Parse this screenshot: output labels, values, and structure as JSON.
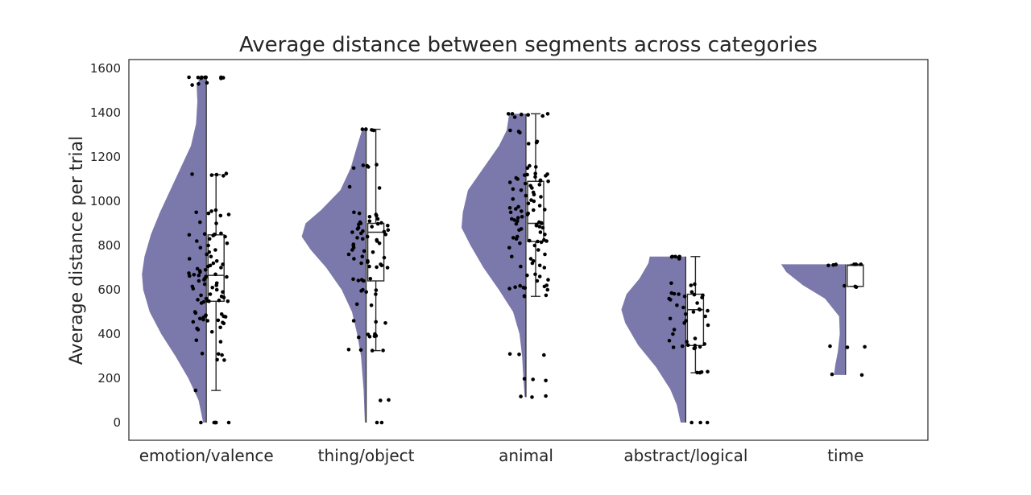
{
  "chart_data": {
    "type": "raincloud",
    "title": "Average distance between segments across categories",
    "xlabel": "",
    "ylabel": "Average distance per trial",
    "ylim": [
      -80,
      1640
    ],
    "yticks": [
      0,
      200,
      400,
      600,
      800,
      1000,
      1200,
      1400,
      1600
    ],
    "grid": false,
    "colors": {
      "violin": "#7b78ac",
      "points": "#000000",
      "box": "#2a2a2a",
      "axes": "#262626"
    },
    "categories": [
      "emotion/valence",
      "thing/object",
      "animal",
      "abstract/logical",
      "time"
    ],
    "groups": [
      {
        "name": "emotion/valence",
        "range": [
          0,
          1560
        ],
        "box": {
          "min": 145,
          "q1": 548,
          "median": 665,
          "q3": 848,
          "max": 1120
        },
        "density": [
          [
            0,
            0.05
          ],
          [
            100,
            0.12
          ],
          [
            200,
            0.28
          ],
          [
            300,
            0.48
          ],
          [
            400,
            0.7
          ],
          [
            500,
            0.88
          ],
          [
            600,
            0.98
          ],
          [
            670,
            1.0
          ],
          [
            750,
            0.96
          ],
          [
            850,
            0.86
          ],
          [
            950,
            0.72
          ],
          [
            1050,
            0.56
          ],
          [
            1150,
            0.4
          ],
          [
            1250,
            0.24
          ],
          [
            1350,
            0.16
          ],
          [
            1450,
            0.14
          ],
          [
            1520,
            0.15
          ],
          [
            1560,
            0.1
          ]
        ],
        "values": [
          0,
          0,
          0,
          0,
          0,
          0,
          145,
          282,
          284,
          305,
          310,
          312,
          365,
          372,
          410,
          420,
          425,
          430,
          448,
          452,
          455,
          460,
          462,
          465,
          470,
          475,
          478,
          480,
          482,
          485,
          490,
          495,
          500,
          540,
          545,
          548,
          548,
          550,
          552,
          555,
          560,
          565,
          570,
          575,
          580,
          590,
          600,
          605,
          610,
          615,
          620,
          625,
          630,
          640,
          645,
          650,
          655,
          658,
          660,
          662,
          665,
          668,
          670,
          675,
          680,
          685,
          690,
          695,
          700,
          705,
          710,
          715,
          720,
          730,
          740,
          750,
          760,
          770,
          780,
          790,
          800,
          810,
          820,
          830,
          840,
          845,
          848,
          850,
          850,
          852,
          855,
          900,
          905,
          935,
          940,
          945,
          950,
          955,
          960,
          1115,
          1118,
          1120,
          1122,
          1125,
          1525,
          1530,
          1535,
          1555,
          1556,
          1558,
          1559,
          1560,
          1560,
          1560,
          1560,
          1560
        ]
      },
      {
        "name": "thing/object",
        "range": [
          0,
          1325
        ],
        "box": {
          "min": 325,
          "q1": 640,
          "median": 860,
          "q3": 900,
          "max": 1325
        },
        "density": [
          [
            0,
            0.02
          ],
          [
            150,
            0.04
          ],
          [
            300,
            0.08
          ],
          [
            400,
            0.14
          ],
          [
            500,
            0.22
          ],
          [
            600,
            0.38
          ],
          [
            700,
            0.62
          ],
          [
            780,
            0.86
          ],
          [
            840,
            1.0
          ],
          [
            900,
            0.94
          ],
          [
            960,
            0.7
          ],
          [
            1050,
            0.4
          ],
          [
            1150,
            0.24
          ],
          [
            1250,
            0.14
          ],
          [
            1325,
            0.06
          ]
        ],
        "values": [
          0,
          0,
          100,
          102,
          325,
          326,
          328,
          330,
          385,
          388,
          390,
          392,
          395,
          398,
          400,
          450,
          455,
          460,
          530,
          535,
          580,
          590,
          595,
          598,
          600,
          640,
          642,
          645,
          648,
          650,
          700,
          702,
          705,
          710,
          715,
          720,
          725,
          730,
          740,
          745,
          750,
          760,
          770,
          775,
          780,
          790,
          800,
          805,
          810,
          820,
          825,
          830,
          835,
          840,
          850,
          855,
          860,
          862,
          865,
          870,
          875,
          880,
          885,
          890,
          895,
          898,
          900,
          902,
          905,
          910,
          920,
          930,
          935,
          940,
          945,
          950,
          1060,
          1065,
          1150,
          1155,
          1160,
          1162,
          1165,
          1320,
          1322,
          1325,
          1325,
          1325
        ]
      },
      {
        "name": "animal",
        "range": [
          115,
          1395
        ],
        "box": {
          "min": 570,
          "q1": 818,
          "median": 900,
          "q3": 1090,
          "max": 1395
        },
        "density": [
          [
            115,
            0.02
          ],
          [
            200,
            0.04
          ],
          [
            300,
            0.06
          ],
          [
            400,
            0.1
          ],
          [
            500,
            0.2
          ],
          [
            600,
            0.42
          ],
          [
            700,
            0.66
          ],
          [
            800,
            0.86
          ],
          [
            880,
            1.0
          ],
          [
            950,
            0.98
          ],
          [
            1050,
            0.9
          ],
          [
            1150,
            0.66
          ],
          [
            1250,
            0.42
          ],
          [
            1320,
            0.3
          ],
          [
            1395,
            0.26
          ]
        ],
        "values": [
          115,
          118,
          120,
          190,
          195,
          198,
          305,
          308,
          310,
          570,
          572,
          575,
          600,
          605,
          608,
          610,
          612,
          615,
          618,
          620,
          640,
          645,
          660,
          665,
          670,
          700,
          705,
          710,
          720,
          730,
          740,
          750,
          760,
          780,
          790,
          800,
          810,
          815,
          818,
          820,
          822,
          825,
          830,
          835,
          840,
          850,
          860,
          870,
          875,
          880,
          885,
          890,
          895,
          898,
          900,
          902,
          905,
          910,
          915,
          920,
          925,
          930,
          940,
          945,
          950,
          955,
          960,
          962,
          965,
          970,
          975,
          980,
          990,
          1000,
          1005,
          1010,
          1020,
          1025,
          1030,
          1040,
          1050,
          1055,
          1060,
          1070,
          1075,
          1080,
          1085,
          1090,
          1092,
          1095,
          1100,
          1105,
          1110,
          1115,
          1118,
          1120,
          1122,
          1125,
          1150,
          1155,
          1160,
          1260,
          1265,
          1270,
          1310,
          1315,
          1320,
          1380,
          1385,
          1390,
          1392,
          1395,
          1395,
          1395
        ]
      },
      {
        "name": "abstract/logical",
        "range": [
          0,
          750
        ],
        "box": {
          "min": 225,
          "q1": 348,
          "median": 510,
          "q3": 580,
          "max": 750
        },
        "density": [
          [
            0,
            0.08
          ],
          [
            80,
            0.14
          ],
          [
            150,
            0.24
          ],
          [
            250,
            0.46
          ],
          [
            350,
            0.74
          ],
          [
            450,
            0.94
          ],
          [
            510,
            1.0
          ],
          [
            580,
            0.92
          ],
          [
            650,
            0.72
          ],
          [
            720,
            0.58
          ],
          [
            750,
            0.56
          ]
        ],
        "values": [
          0,
          0,
          0,
          225,
          226,
          228,
          230,
          335,
          338,
          340,
          342,
          345,
          348,
          350,
          355,
          365,
          370,
          380,
          400,
          420,
          440,
          450,
          460,
          470,
          480,
          490,
          500,
          505,
          510,
          512,
          520,
          530,
          540,
          555,
          560,
          565,
          570,
          575,
          578,
          580,
          582,
          585,
          590,
          620,
          625,
          630,
          740,
          745,
          748,
          750,
          750,
          750
        ]
      },
      {
        "name": "time",
        "range": [
          215,
          715
        ],
        "box": {
          "min": 615,
          "q1": 615,
          "median": 710,
          "q3": 712,
          "max": 715
        },
        "density": [
          [
            215,
            0.18
          ],
          [
            260,
            0.16
          ],
          [
            320,
            0.12
          ],
          [
            400,
            0.09
          ],
          [
            480,
            0.1
          ],
          [
            560,
            0.32
          ],
          [
            620,
            0.66
          ],
          [
            680,
            0.92
          ],
          [
            715,
            1.0
          ]
        ],
        "values": [
          215,
          218,
          340,
          342,
          345,
          612,
          615,
          618,
          710,
          712,
          714,
          715,
          715,
          715
        ]
      }
    ]
  }
}
